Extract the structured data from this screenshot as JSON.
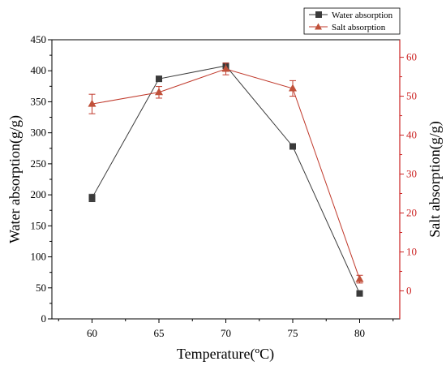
{
  "colors": {
    "water": "#3a3a3a",
    "salt": "#c0392b",
    "salt_marker": "#c0513a",
    "axis_left": "#000000",
    "axis_right": "#cc2222"
  },
  "chart_data": {
    "type": "line",
    "x": [
      60,
      65,
      70,
      75,
      80
    ],
    "xlabel": "Temperature(ºC)",
    "xlim": [
      57,
      83
    ],
    "x_ticks": [
      "60",
      "65",
      "70",
      "75",
      "80"
    ],
    "grid": false,
    "legend": "top-right",
    "left_axis": {
      "label": "Water absorption(g/g)",
      "ylim": [
        0,
        450
      ],
      "ticks": [
        "0",
        "50",
        "100",
        "150",
        "200",
        "250",
        "300",
        "350",
        "400",
        "450"
      ]
    },
    "right_axis": {
      "label": "Salt absorption(g/g)",
      "ylim": [
        -7.2,
        64.5
      ],
      "ticks": [
        "0",
        "10",
        "20",
        "30",
        "40",
        "50",
        "60"
      ]
    },
    "series": [
      {
        "name": "Water absorption",
        "axis": "left",
        "marker": "square",
        "values": [
          195,
          387,
          408,
          278,
          41
        ],
        "errors": [
          6,
          4,
          4,
          3,
          4
        ]
      },
      {
        "name": "Salt absorption",
        "axis": "right",
        "marker": "triangle",
        "values": [
          48,
          51,
          57,
          52,
          3
        ],
        "errors": [
          2.5,
          1.5,
          1.5,
          2,
          1
        ]
      }
    ]
  }
}
